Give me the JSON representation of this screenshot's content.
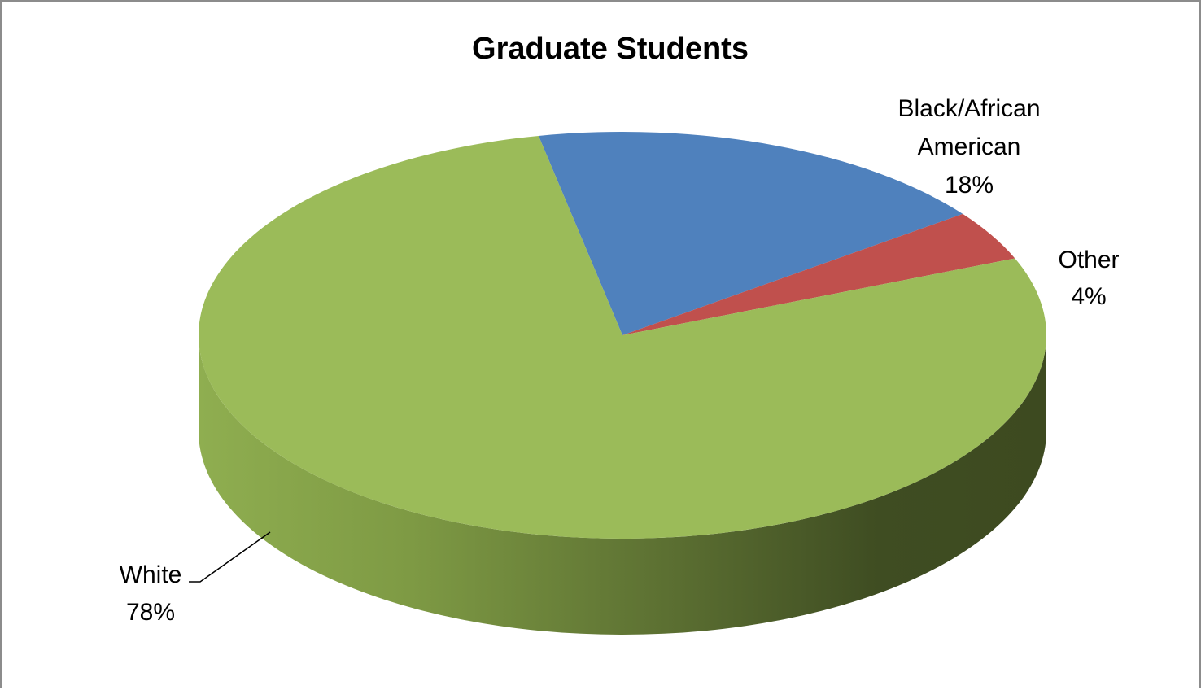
{
  "chart_data": {
    "type": "pie",
    "title": "Graduate Students",
    "slices": [
      {
        "label": "White",
        "value": 78,
        "display": "78%",
        "color": "#9BBB59",
        "side_dark": "#3E4B23",
        "side_light": "#7F9A47"
      },
      {
        "label": "Black/African American",
        "value": 18,
        "display": "18%",
        "color": "#4F81BD"
      },
      {
        "label": "Other",
        "value": 4,
        "display": "4%",
        "color": "#C0504D"
      }
    ],
    "label_lines": {
      "white": [
        "White",
        "78%"
      ],
      "black": [
        "Black/African",
        "American",
        "18%"
      ],
      "other": [
        "Other",
        "4%"
      ]
    },
    "legend": "none",
    "three_d": true
  }
}
